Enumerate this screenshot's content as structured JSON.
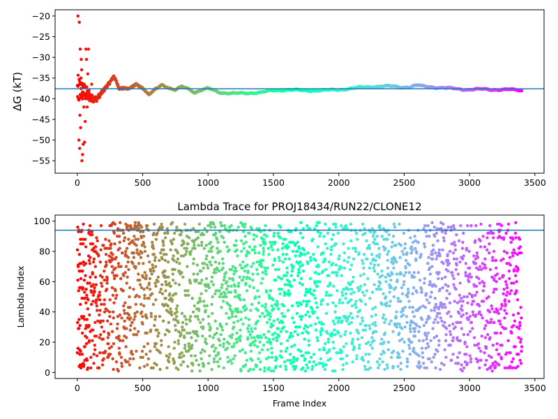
{
  "chart_data": [
    {
      "type": "scatter",
      "title": "",
      "xlabel": "",
      "ylabel": "ΔG (kT)",
      "xlim": [
        -170,
        3570
      ],
      "ylim": [
        -58,
        -18.5
      ],
      "xticks": [
        0,
        500,
        1000,
        1500,
        2000,
        2500,
        3000,
        3500
      ],
      "yticks": [
        -20,
        -25,
        -30,
        -35,
        -40,
        -45,
        -50,
        -55
      ],
      "hline": -37.6,
      "hline_color": "#1f77b4",
      "colormap": "rainbow (red at frame 0 → violet at frame 3400)",
      "grid": false,
      "legend": "none",
      "trend": {
        "x": [
          0,
          10,
          30,
          60,
          90,
          120,
          150,
          200,
          250,
          280,
          320,
          400,
          450,
          500,
          550,
          600,
          650,
          700,
          750,
          800,
          850,
          900,
          950,
          1000,
          1100,
          1200,
          1300,
          1400,
          1500,
          1600,
          1700,
          1800,
          1900,
          2000,
          2100,
          2200,
          2300,
          2400,
          2500,
          2550,
          2600,
          2650,
          2700,
          2800,
          2900,
          3000,
          3100,
          3200,
          3300,
          3400
        ],
        "y": [
          -38,
          -38,
          -38,
          -38.5,
          -39.5,
          -40,
          -40,
          -38,
          -36,
          -34.5,
          -37.5,
          -37.5,
          -36.5,
          -37.5,
          -39,
          -37.5,
          -36.5,
          -37.5,
          -38,
          -37,
          -37.5,
          -38.5,
          -38,
          -37.5,
          -38.5,
          -38.8,
          -38.6,
          -38.5,
          -38,
          -37.8,
          -38,
          -38,
          -38,
          -37.8,
          -37.5,
          -37.2,
          -37,
          -37,
          -37.2,
          -37.1,
          -36.8,
          -37,
          -37.1,
          -37.4,
          -37.6,
          -37.8,
          -37.7,
          -37.8,
          -37.8,
          -38
        ]
      },
      "spread": {
        "x": [
          0,
          15,
          30,
          50,
          70,
          90,
          110,
          140,
          170,
          200,
          260,
          320,
          400,
          500,
          600
        ],
        "width": [
          22,
          20,
          15,
          13,
          11,
          7,
          5,
          4,
          3,
          2.5,
          2,
          1.5,
          1.2,
          1,
          0.6
        ]
      },
      "scattered_points": {
        "x": [
          5,
          8,
          12,
          15,
          18,
          20,
          22,
          25,
          28,
          30,
          33,
          35,
          38,
          40,
          45,
          50,
          55,
          60,
          65,
          70,
          75,
          80,
          85,
          90,
          95,
          100,
          110
        ],
        "y": [
          -20,
          -40,
          -50,
          -21.5,
          -52,
          -44,
          -28,
          -47,
          -35,
          -30.5,
          -33,
          -55,
          -38.5,
          -53.5,
          -51,
          -42,
          -50.5,
          -45.5,
          -28,
          -30.5,
          -42,
          -34,
          -28,
          -38,
          -40,
          -39,
          -36.5
        ]
      }
    },
    {
      "type": "scatter",
      "title": "Lambda Trace for PROJ18434/RUN22/CLONE12",
      "xlabel": "Frame Index",
      "ylabel": "Lambda Index",
      "xlim": [
        -170,
        3570
      ],
      "ylim": [
        -4,
        104
      ],
      "xticks": [
        0,
        500,
        1000,
        1500,
        2000,
        2500,
        3000,
        3500
      ],
      "yticks": [
        0,
        20,
        40,
        60,
        80,
        100
      ],
      "hline": 94,
      "hline_color": "#1f77b4",
      "colormap": "rainbow (red at frame 0 → violet at frame 3400)",
      "grid": false,
      "legend": "none",
      "frames": [
        0,
        3400
      ],
      "lambda_range": [
        1,
        99
      ]
    }
  ]
}
